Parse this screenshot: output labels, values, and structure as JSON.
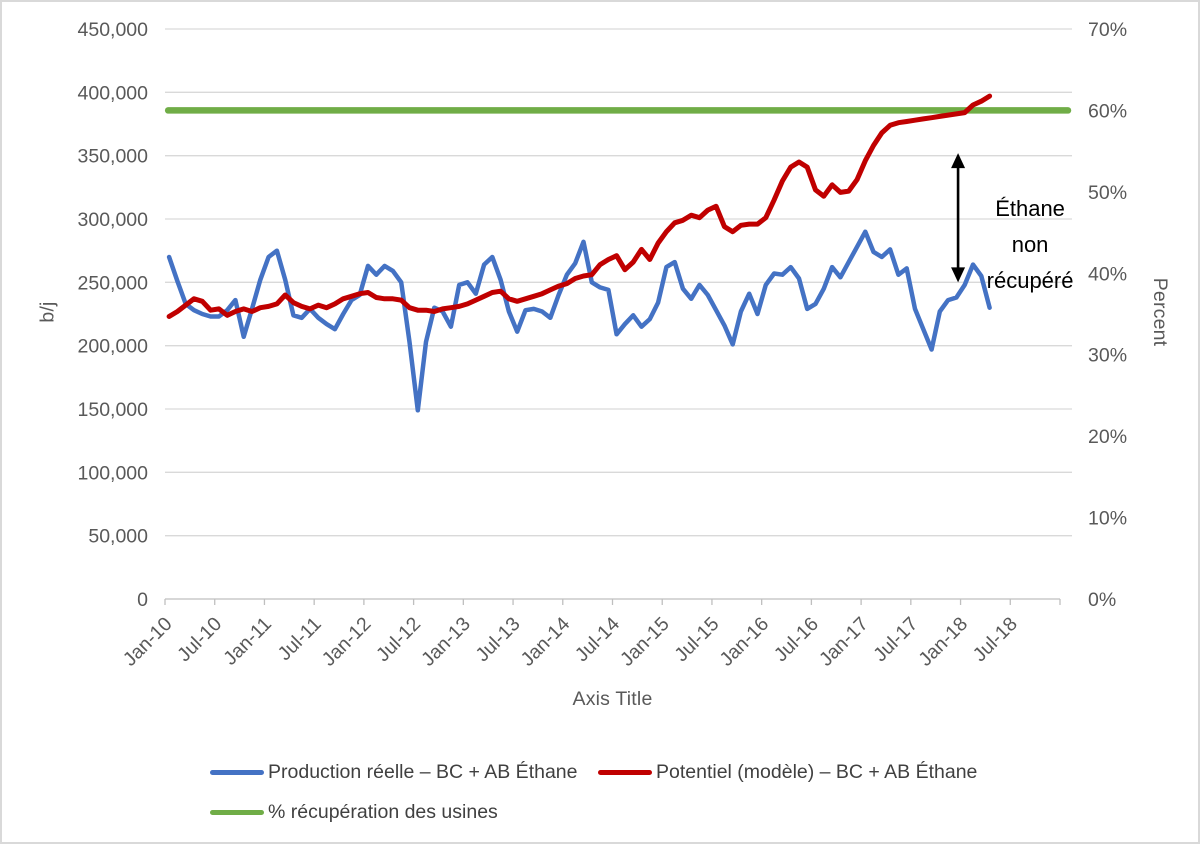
{
  "chart_data": {
    "type": "line",
    "title": "",
    "xlabel": "Axis Title",
    "ylabel_left": "b/j",
    "ylabel_right": "Percent",
    "frequency": "monthly",
    "start_month": "Jan-2010",
    "end_month": "Apr-2018",
    "x": {
      "tick_labels": [
        "Jan-10",
        "Jul-10",
        "Jan-11",
        "Jul-11",
        "Jan-12",
        "Jul-12",
        "Jan-13",
        "Jul-13",
        "Jan-14",
        "Jul-14",
        "Jan-15",
        "Jul-15",
        "Jan-16",
        "Jul-16",
        "Jan-17",
        "Jul-17",
        "Jan-18",
        "Jul-18"
      ],
      "total_categories": 108
    },
    "left_axis": {
      "min": 0,
      "max": 450000,
      "step": 50000,
      "tick_labels": [
        "0",
        "50,000",
        "100,000",
        "150,000",
        "200,000",
        "250,000",
        "300,000",
        "350,000",
        "400,000",
        "450,000"
      ]
    },
    "right_axis": {
      "min": 0,
      "max": 70,
      "step": 10,
      "tick_labels": [
        "0%",
        "10%",
        "20%",
        "30%",
        "40%",
        "50%",
        "60%",
        "70%"
      ]
    },
    "grid": "horizontal",
    "legend_position": "bottom",
    "series": [
      {
        "name": "Production réelle – BC + AB Éthane",
        "color": "#4472C4",
        "axis": "left",
        "unit": "b/j",
        "values": [
          270000,
          251000,
          233000,
          228000,
          225000,
          223000,
          223000,
          228000,
          236000,
          207000,
          229000,
          252000,
          270000,
          275000,
          252000,
          224000,
          222000,
          229000,
          222000,
          217000,
          213000,
          225000,
          236000,
          240000,
          263000,
          256000,
          263000,
          259000,
          250000,
          203000,
          149000,
          203000,
          230000,
          227000,
          215000,
          248000,
          250000,
          241000,
          264000,
          270000,
          252000,
          227000,
          211000,
          228000,
          229000,
          227000,
          222000,
          240000,
          256000,
          265000,
          282000,
          250000,
          246000,
          244000,
          209000,
          217000,
          224000,
          215000,
          221000,
          234000,
          262000,
          266000,
          245000,
          237000,
          248000,
          240000,
          228000,
          216000,
          201000,
          227000,
          241000,
          225000,
          248000,
          257000,
          256000,
          262000,
          253000,
          229000,
          233000,
          245000,
          262000,
          254000,
          266000,
          278000,
          290000,
          274000,
          270000,
          276000,
          256000,
          261000,
          229000,
          213000,
          197000,
          227000,
          236000,
          238000,
          248000,
          264000,
          255000,
          230000
        ]
      },
      {
        "name": "Potentiel (modèle) – BC + AB Éthane",
        "color": "#C00000",
        "axis": "left",
        "unit": "b/j",
        "values": [
          223000,
          227000,
          232000,
          237000,
          235000,
          228000,
          229000,
          224000,
          227000,
          229000,
          227000,
          230000,
          231000,
          233000,
          240000,
          234000,
          231000,
          229000,
          232000,
          230000,
          233000,
          237000,
          239000,
          241000,
          242000,
          238000,
          237000,
          237000,
          236000,
          230000,
          228000,
          228000,
          227000,
          229000,
          230000,
          231000,
          233000,
          236000,
          239000,
          242000,
          243000,
          237000,
          235000,
          237000,
          239000,
          241000,
          244000,
          247000,
          249000,
          253000,
          255000,
          256000,
          264000,
          268000,
          271000,
          260000,
          266000,
          276000,
          268000,
          281000,
          290000,
          297000,
          299000,
          303000,
          301000,
          307000,
          310000,
          294000,
          290000,
          295000,
          296000,
          296000,
          301000,
          315000,
          330000,
          341000,
          345000,
          341000,
          323000,
          318000,
          327000,
          321000,
          322000,
          331000,
          346000,
          358000,
          368000,
          374000,
          376000,
          377000,
          378000,
          379000,
          380000,
          381000,
          382000,
          383000,
          384000,
          390000,
          393000,
          397000
        ]
      },
      {
        "name": "% récupération des usines",
        "color": "#70AD47",
        "axis": "right",
        "unit": "%",
        "constant_value": 60
      }
    ],
    "annotation": {
      "text": "Éthane non récupéré",
      "text_lines": [
        "Éthane",
        "non",
        "récupéré"
      ],
      "arrow_month_index": 95.2,
      "arrow_top_value": 352000,
      "arrow_bottom_value": 250000,
      "color": "#000000"
    }
  },
  "style_colors": {
    "gridline": "#D9D9D9",
    "axis_line": "#BFBFBF",
    "tick_text": "#595959",
    "legend_text": "#404040",
    "background": "#FFFFFF"
  }
}
